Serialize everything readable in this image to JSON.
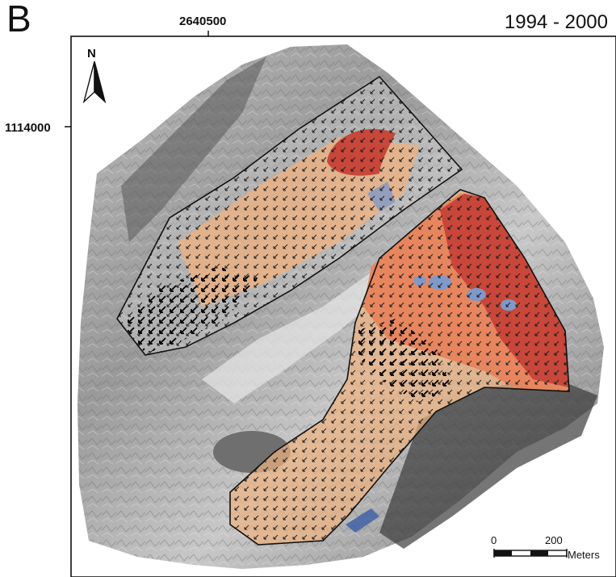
{
  "panel_label": "B",
  "period": "1994 - 2000",
  "coordinates": {
    "x_tick": "2640500",
    "y_tick": "1114000"
  },
  "north_arrow": {
    "label": "N",
    "icon": "north-arrow-icon"
  },
  "scale_bar": {
    "zero": "0",
    "max": "200",
    "unit": "Meters"
  },
  "colors": {
    "high_displacement": "#c8473a",
    "medium_displacement": "#e7865e",
    "low_displacement": "#f0b27f",
    "negative": "#7f99c9",
    "frame": "#111111"
  }
}
